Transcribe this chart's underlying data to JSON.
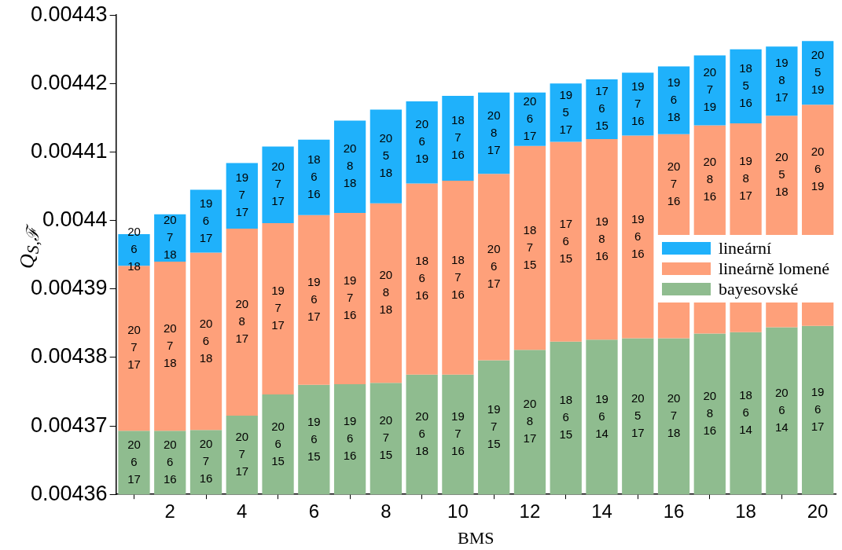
{
  "chart_data": {
    "type": "bar",
    "xlabel": "BMS",
    "ylabel": "Q$_{S,ℱ}$",
    "x": [
      1,
      2,
      3,
      4,
      5,
      6,
      7,
      8,
      9,
      10,
      11,
      12,
      13,
      14,
      15,
      16,
      17,
      18,
      19,
      20
    ],
    "xlim": [
      0.5,
      20.5
    ],
    "xticks": [
      2,
      4,
      6,
      8,
      10,
      12,
      14,
      16,
      18,
      20
    ],
    "ylim": [
      0.00436,
      0.00443
    ],
    "yticks": [
      0.00436,
      0.00437,
      0.00438,
      0.00439,
      0.0044,
      0.00441,
      0.00442,
      0.00443
    ],
    "grid": false,
    "legend": "right",
    "series": [
      {
        "name": "lineární",
        "color": "#1fb1fb",
        "base": [
          0.0043934,
          0.004394,
          0.0043953,
          0.0043988,
          0.0043996,
          0.0044008,
          0.0044011,
          0.0044025,
          0.0044054,
          0.0044058,
          0.0044068,
          0.0044109,
          0.0044115,
          0.0044119,
          0.0044124,
          0.0044126,
          0.0044139,
          0.0044142,
          0.0044153,
          0.0044169
        ],
        "values": [
          4.6e-06,
          6.9e-06,
          9.2e-06,
          9.6e-06,
          1.12e-05,
          1.1e-05,
          1.35e-05,
          1.37e-05,
          1.2e-05,
          1.24e-05,
          1.19e-05,
          7.8e-06,
          8.5e-06,
          8.7e-06,
          9.2e-06,
          9.9e-06,
          1.02e-05,
          1.08e-05,
          1.01e-05,
          9.3e-06
        ]
      },
      {
        "name": "lineárně lomené",
        "color": "#fea07a",
        "base": [
          0.0043693,
          0.0043693,
          0.0043694,
          0.0043715,
          0.0043746,
          0.004376,
          0.0043761,
          0.0043763,
          0.0043775,
          0.0043775,
          0.0043796,
          0.0043811,
          0.0043823,
          0.0043826,
          0.0043828,
          0.0043828,
          0.0043835,
          0.0043837,
          0.0043844,
          0.0043846
        ],
        "values": [
          2.41e-05,
          2.47e-05,
          2.59e-05,
          2.73e-05,
          2.5e-05,
          2.48e-05,
          2.5e-05,
          2.62e-05,
          2.79e-05,
          2.83e-05,
          2.72e-05,
          2.98e-05,
          2.92e-05,
          2.93e-05,
          2.96e-05,
          2.98e-05,
          3.04e-05,
          3.05e-05,
          3.09e-05,
          3.23e-05
        ]
      },
      {
        "name": "bayesovské",
        "color": "#8fbc8f",
        "values": [
          0.0043693,
          0.0043693,
          0.0043694,
          0.0043715,
          0.0043746,
          0.004376,
          0.0043761,
          0.0043763,
          0.0043775,
          0.0043775,
          0.0043796,
          0.0043811,
          0.0043823,
          0.0043826,
          0.0043828,
          0.0043828,
          0.0043835,
          0.0043837,
          0.0043844,
          0.0043846
        ]
      }
    ],
    "annotations": [
      "20\n6\n18",
      "20\n7\n18",
      "19\n6\n17",
      "19\n7\n17",
      "20\n7\n17",
      "18\n6\n16",
      "20\n8\n18",
      "20\n5\n18",
      "20\n6\n19",
      "18\n7\n16",
      "20\n8\n17",
      "20\n6\n17",
      "19\n5\n17",
      "17\n6\n15",
      "19\n7\n16",
      "19\n6\n18",
      "20\n7\n19",
      "18\n5\n16",
      "19\n8\n17",
      "20\n5\n19",
      "20\n7\n17",
      "20\n7\n18",
      "20\n6\n18",
      "20\n8\n17",
      "19\n7\n17",
      "19\n6\n17",
      "19\n7\n16",
      "20\n8\n18",
      "18\n6\n16",
      "18\n7\n16",
      "20\n6\n17",
      "18\n7\n15",
      "17\n6\n15",
      "19\n8\n16",
      "19\n6\n16",
      "20\n7\n16",
      "20\n8\n16",
      "19\n8\n17",
      "20\n5\n18",
      "20\n6\n19",
      "20\n6\n17",
      "20\n6\n16",
      "20\n7\n16",
      "20\n7\n17",
      "20\n6\n15",
      "19\n6\n15",
      "19\n6\n16",
      "20\n7\n15",
      "20\n6\n18",
      "19\n7\n16",
      "19\n7\n15",
      "20\n8\n17",
      "18\n6\n15",
      "19\n6\n14",
      "20\n5\n17",
      "20\n7\n18",
      "20\n8\n16",
      "18\n6\n14",
      "20\n6\n14",
      "19\n6\n17"
    ]
  }
}
